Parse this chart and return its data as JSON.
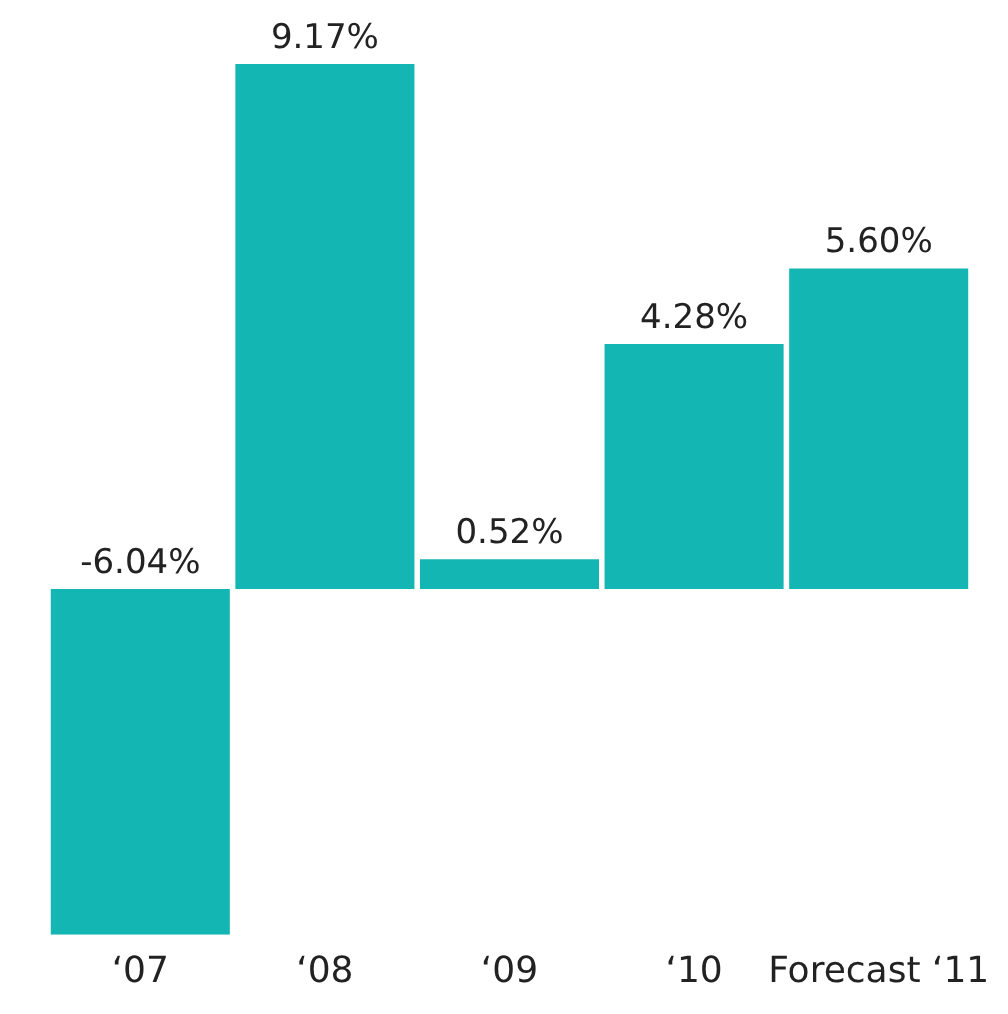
{
  "chart_data": {
    "type": "bar",
    "categories": [
      "‘07",
      "‘08",
      "‘09",
      "‘10",
      "Forecast ‘11"
    ],
    "values": [
      -6.04,
      9.17,
      0.52,
      4.28,
      5.6
    ],
    "value_labels": [
      "-6.04%",
      "9.17%",
      "0.52%",
      "4.28%",
      "5.60%"
    ],
    "color": "#14b6b4",
    "grid": false,
    "legend": false
  }
}
